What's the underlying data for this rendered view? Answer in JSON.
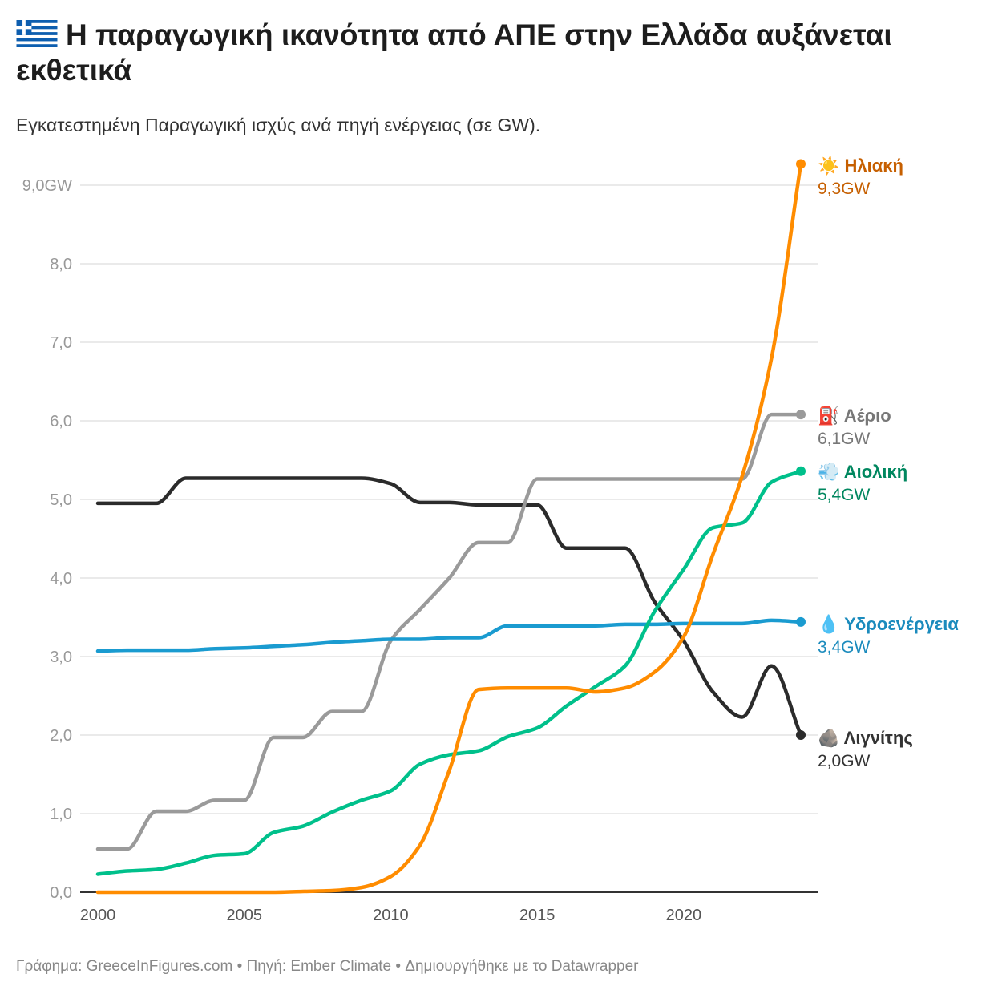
{
  "header": {
    "flag_icon": "greece-flag-icon",
    "title": "Η παραγωγική ικανότητα από ΑΠΕ στην Ελλάδα αυξάνεται εκθετικά",
    "subtitle": "Εγκατεστημένη Παραγωγική ισχύς ανά πηγή ενέργειας (σε GW)."
  },
  "footer": "Γράφημα: GreeceInFigures.com • Πηγή: Ember Climate • Δημιουργήθηκε με το Datawrapper",
  "chart_data": {
    "type": "line",
    "title": "Η παραγωγική ικανότητα από ΑΠΕ στην Ελλάδα αυξάνεται εκθετικά",
    "xlabel": "",
    "ylabel": "GW",
    "xlim": [
      2000,
      2024
    ],
    "ylim": [
      0,
      9
    ],
    "grid": true,
    "x": [
      2000,
      2001,
      2002,
      2003,
      2004,
      2005,
      2006,
      2007,
      2008,
      2009,
      2010,
      2011,
      2012,
      2013,
      2014,
      2015,
      2016,
      2017,
      2018,
      2019,
      2020,
      2021,
      2022,
      2023,
      2024
    ],
    "x_ticks": [
      2000,
      2005,
      2010,
      2015,
      2020
    ],
    "x_tick_labels": [
      "2000",
      "2005",
      "2010",
      "2015",
      "2020"
    ],
    "y_ticks": [
      0,
      1,
      2,
      3,
      4,
      5,
      6,
      7,
      8,
      9
    ],
    "y_tick_labels": [
      "0,0",
      "1,0",
      "2,0",
      "3,0",
      "4,0",
      "5,0",
      "6,0",
      "7,0",
      "8,0",
      "9,0GW"
    ],
    "series": [
      {
        "name": "Λιγνίτης",
        "icon": "🪨",
        "value_label": "2,0GW",
        "color": "#2b2b2b",
        "label_color": "#333333",
        "values": [
          4.95,
          4.95,
          4.95,
          5.27,
          5.27,
          5.27,
          5.27,
          5.27,
          5.27,
          5.27,
          5.2,
          4.96,
          4.96,
          4.93,
          4.93,
          4.93,
          4.38,
          4.38,
          4.38,
          3.7,
          3.2,
          2.55,
          2.23,
          2.88,
          2.0
        ]
      },
      {
        "name": "Αέριο",
        "icon": "⛽",
        "value_label": "6,1GW",
        "color": "#9a9a9a",
        "label_color": "#777777",
        "values": [
          0.55,
          0.55,
          1.03,
          1.03,
          1.17,
          1.17,
          1.97,
          1.97,
          2.3,
          2.3,
          3.2,
          3.6,
          4.0,
          4.45,
          4.45,
          5.26,
          5.26,
          5.26,
          5.26,
          5.26,
          5.26,
          5.26,
          5.26,
          6.08,
          6.08
        ]
      },
      {
        "name": "Υδροενέργεια",
        "icon": "💧",
        "value_label": "3,4GW",
        "color": "#1a9bd0",
        "label_color": "#1b8bbd",
        "values": [
          3.07,
          3.08,
          3.08,
          3.08,
          3.1,
          3.11,
          3.13,
          3.15,
          3.18,
          3.2,
          3.22,
          3.22,
          3.24,
          3.24,
          3.39,
          3.39,
          3.39,
          3.39,
          3.41,
          3.41,
          3.42,
          3.42,
          3.42,
          3.46,
          3.44
        ]
      },
      {
        "name": "Αιολική",
        "icon": "💨",
        "value_label": "5,4GW",
        "color": "#00c08b",
        "label_color": "#00875f",
        "values": [
          0.23,
          0.27,
          0.29,
          0.37,
          0.47,
          0.49,
          0.76,
          0.84,
          1.02,
          1.17,
          1.29,
          1.63,
          1.75,
          1.8,
          1.98,
          2.09,
          2.37,
          2.62,
          2.88,
          3.57,
          4.11,
          4.64,
          4.7,
          5.22,
          5.36
        ]
      },
      {
        "name": "Ηλιακή",
        "icon": "☀️",
        "value_label": "9,3GW",
        "color": "#ff8c00",
        "label_color": "#c65f00",
        "values": [
          0,
          0,
          0,
          0,
          0,
          0,
          0,
          0.01,
          0.02,
          0.06,
          0.2,
          0.6,
          1.55,
          2.58,
          2.6,
          2.6,
          2.6,
          2.55,
          2.6,
          2.8,
          3.25,
          4.3,
          5.3,
          6.8,
          9.27
        ]
      }
    ],
    "legend": "direct-labels-right"
  }
}
